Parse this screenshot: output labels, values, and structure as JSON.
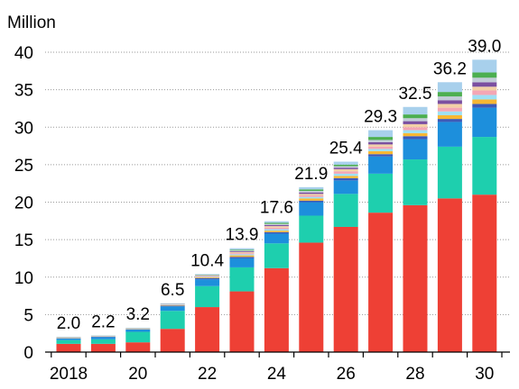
{
  "chart_data": {
    "type": "bar",
    "stacked": true,
    "ylabel": "Million",
    "ylim": [
      0,
      40
    ],
    "yticks": [
      0,
      5,
      10,
      15,
      20,
      25,
      30,
      35,
      40
    ],
    "grid": "horizontal dotted",
    "categories": [
      "2018",
      "2019",
      "2020",
      "2021",
      "2022",
      "2023",
      "2024",
      "2025",
      "2026",
      "2027",
      "2028",
      "2029",
      "2030"
    ],
    "xtick_labels": [
      "2018",
      "",
      "20",
      "",
      "22",
      "",
      "24",
      "",
      "26",
      "",
      "28",
      "",
      "30"
    ],
    "totals": [
      "2.0",
      "2.2",
      "3.2",
      "6.5",
      "10.4",
      "13.9",
      "17.6",
      "21.9",
      "25.4",
      "29.3",
      "32.5",
      "36.2",
      "39.0"
    ],
    "series": [
      {
        "color": "#ee4035",
        "values": [
          1.1,
          1.1,
          1.3,
          3.1,
          6.0,
          8.1,
          11.2,
          14.6,
          16.7,
          18.6,
          19.6,
          20.5,
          21.0
        ]
      },
      {
        "color": "#1ecfae",
        "values": [
          0.5,
          0.6,
          1.4,
          2.4,
          2.8,
          3.2,
          3.3,
          3.6,
          4.4,
          5.2,
          6.1,
          6.9,
          7.7
        ]
      },
      {
        "color": "#1d8fdc",
        "values": [
          0.2,
          0.3,
          0.3,
          0.6,
          0.9,
          1.2,
          1.3,
          1.8,
          1.8,
          2.3,
          2.7,
          3.3,
          3.9
        ]
      },
      {
        "color": "#3d5ab8",
        "values": [
          0.04,
          0.04,
          0.04,
          0.1,
          0.15,
          0.2,
          0.2,
          0.2,
          0.3,
          0.3,
          0.4,
          0.4,
          0.5
        ]
      },
      {
        "color": "#f7b733",
        "values": [
          0.03,
          0.03,
          0.03,
          0.06,
          0.1,
          0.2,
          0.2,
          0.3,
          0.3,
          0.4,
          0.4,
          0.5,
          0.6
        ]
      },
      {
        "color": "#9ee0f5",
        "values": [
          0.02,
          0.02,
          0.02,
          0.04,
          0.08,
          0.15,
          0.2,
          0.2,
          0.3,
          0.3,
          0.4,
          0.5,
          0.6
        ]
      },
      {
        "color": "#f4a6b5",
        "values": [
          0.02,
          0.02,
          0.02,
          0.04,
          0.08,
          0.15,
          0.2,
          0.2,
          0.3,
          0.3,
          0.4,
          0.5,
          0.6
        ]
      },
      {
        "color": "#f2d0a6",
        "values": [
          0.02,
          0.02,
          0.02,
          0.04,
          0.08,
          0.15,
          0.2,
          0.2,
          0.3,
          0.3,
          0.4,
          0.5,
          0.5
        ]
      },
      {
        "color": "#7b4fa0",
        "values": [
          0.02,
          0.02,
          0.02,
          0.03,
          0.05,
          0.1,
          0.15,
          0.2,
          0.2,
          0.3,
          0.4,
          0.5,
          0.6
        ]
      },
      {
        "color": "#c2ccd8",
        "values": [
          0.02,
          0.02,
          0.02,
          0.03,
          0.05,
          0.1,
          0.15,
          0.2,
          0.2,
          0.3,
          0.4,
          0.5,
          0.6
        ]
      },
      {
        "color": "#4caf50",
        "values": [
          0.02,
          0.02,
          0.02,
          0.02,
          0.04,
          0.1,
          0.15,
          0.2,
          0.2,
          0.4,
          0.5,
          0.6,
          0.7
        ]
      },
      {
        "color": "#a8d0ec",
        "values": [
          0.04,
          0.04,
          0.04,
          0.05,
          0.07,
          0.2,
          0.2,
          0.3,
          0.4,
          0.9,
          1.0,
          1.3,
          1.7
        ]
      }
    ]
  }
}
